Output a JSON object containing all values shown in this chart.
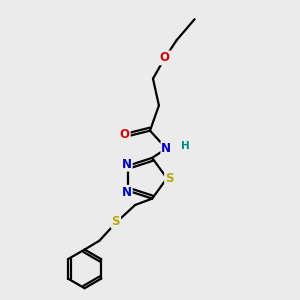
{
  "background_color": "#ebebeb",
  "bond_color": "#000000",
  "atom_colors": {
    "O": "#dd0000",
    "N": "#0000cc",
    "S": "#bbaa00",
    "H": "#008888"
  },
  "figsize": [
    3.0,
    3.0
  ],
  "dpi": 100,
  "bond_lw": 1.6,
  "font_size": 8.5
}
